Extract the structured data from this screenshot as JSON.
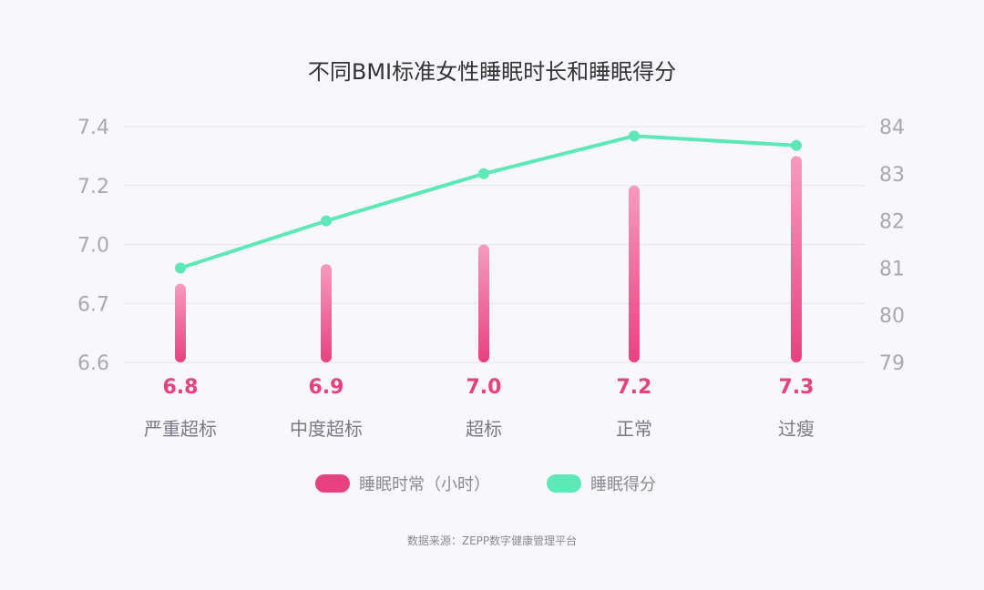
{
  "chart_data": {
    "type": "bar+line",
    "title": "不同BMI标准女性睡眠时长和睡眠得分",
    "categories": [
      "严重超标",
      "中度超标",
      "超标",
      "正常",
      "过瘦"
    ],
    "series": [
      {
        "name": "睡眠时常（小时）",
        "type": "bar",
        "axis": "left",
        "values": [
          6.8,
          6.9,
          7.0,
          7.2,
          7.3
        ],
        "value_labels": [
          "6.8",
          "6.9",
          "7.0",
          "7.2",
          "7.3"
        ],
        "color": "#e8417f"
      },
      {
        "name": "睡眠得分",
        "type": "line",
        "axis": "right",
        "values": [
          81.0,
          82.0,
          83.0,
          83.8,
          83.6
        ],
        "color": "#5ee8b8"
      }
    ],
    "y_left": {
      "ticks": [
        "6.6",
        "6.7",
        "7.0",
        "7.2",
        "7.4"
      ],
      "tick_values": [
        6.6,
        6.7,
        7.0,
        7.2,
        7.4
      ]
    },
    "y_right": {
      "ticks": [
        "79",
        "80",
        "81",
        "82",
        "83",
        "84"
      ],
      "min": 79,
      "max": 84
    },
    "grid": true,
    "legend_position": "bottom"
  },
  "source_text": "数据来源：ZEPP数字健康管理平台"
}
